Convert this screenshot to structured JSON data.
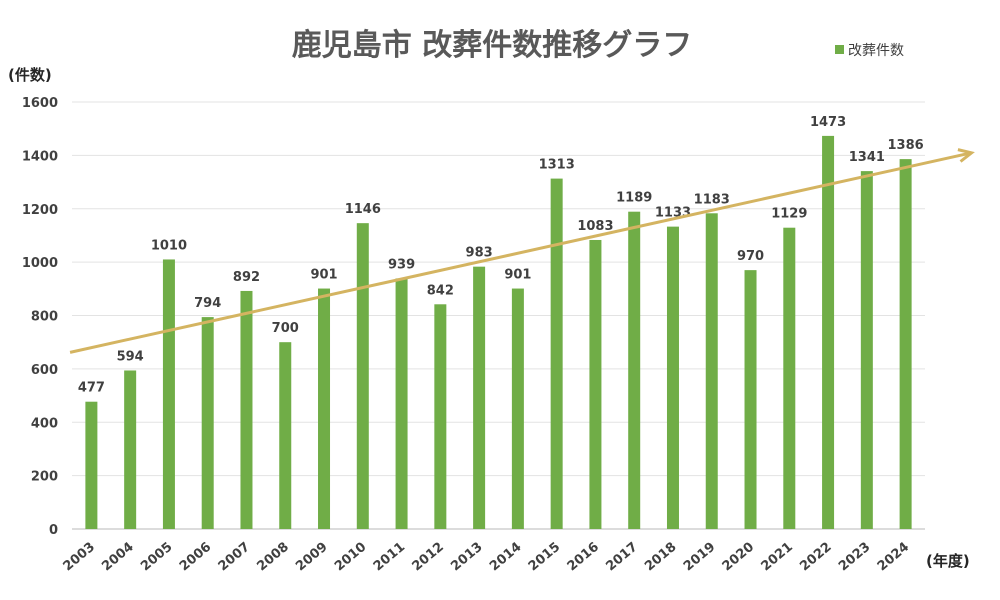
{
  "chart_data": {
    "type": "bar",
    "title": "鹿児島市 改葬件数推移グラフ",
    "ylabel": "(件数)",
    "xlabel": "(年度)",
    "ylim": [
      0,
      1600
    ],
    "yticks": [
      0,
      200,
      400,
      600,
      800,
      1000,
      1200,
      1400,
      1600
    ],
    "grid": true,
    "legend_position": "top-right",
    "categories": [
      "2003",
      "2004",
      "2005",
      "2006",
      "2007",
      "2008",
      "2009",
      "2010",
      "2011",
      "2012",
      "2013",
      "2014",
      "2015",
      "2016",
      "2017",
      "2018",
      "2019",
      "2020",
      "2021",
      "2022",
      "2023",
      "2024"
    ],
    "series": [
      {
        "name": "改葬件数",
        "color": "#70AD47",
        "values": [
          477,
          594,
          1010,
          794,
          892,
          700,
          901,
          1146,
          939,
          842,
          983,
          901,
          1313,
          1083,
          1189,
          1133,
          1183,
          970,
          1129,
          1473,
          1341,
          1386
        ]
      }
    ],
    "trendline": {
      "type": "linear",
      "color": "#D4B461",
      "arrow": true
    }
  }
}
